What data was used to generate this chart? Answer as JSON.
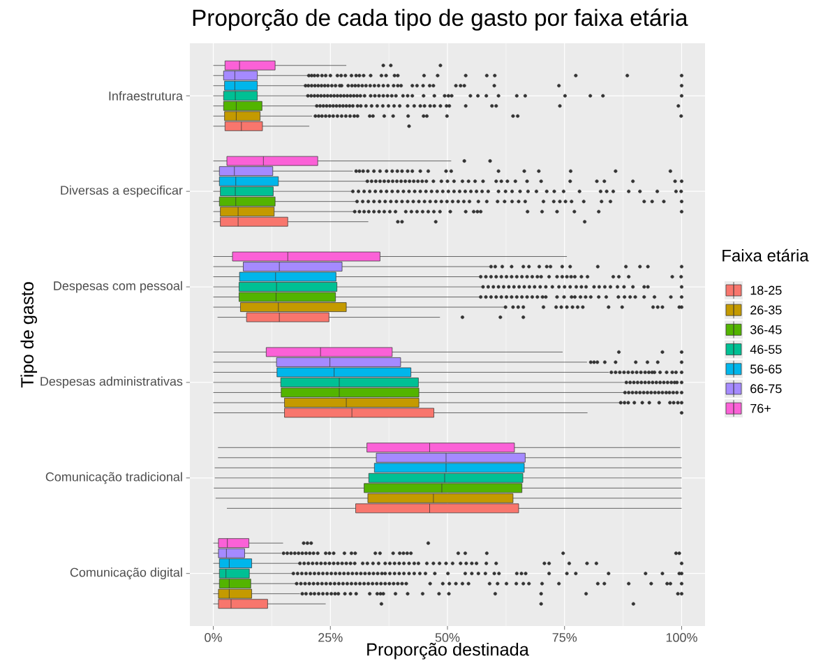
{
  "chart_data": {
    "type": "box",
    "title": "Proporção de cada tipo de gasto por faixa etária",
    "xlabel": "Proporção destinada",
    "ylabel": "Tipo de gasto",
    "legend_title": "Faixa etária",
    "orientation": "horizontal",
    "grid": true,
    "legend": "right",
    "xlim": [
      -5,
      105
    ],
    "xticks": [
      {
        "value": 0,
        "label": "0%"
      },
      {
        "value": 25,
        "label": "25%"
      },
      {
        "value": 50,
        "label": "50%"
      },
      {
        "value": 75,
        "label": "75%"
      },
      {
        "value": 100,
        "label": "100%"
      }
    ],
    "categories": [
      "Infraestrutura",
      "Diversas a especificar",
      "Despesas com pessoal",
      "Despesas administrativas",
      "Comunicação tradicional",
      "Comunicação digital"
    ],
    "series": [
      {
        "name": "18-25",
        "color": "#F8766D",
        "boxes": [
          {
            "low": 0,
            "q1": 2.5,
            "median": 6,
            "q3": 10.5,
            "high": 20.5,
            "outliers": [
              41.8
            ]
          },
          {
            "low": 0,
            "q1": 1.5,
            "median": 5.3,
            "q3": 15.9,
            "high": 33.1,
            "outliers": [
              39.4,
              40.3,
              47.5,
              79.3
            ]
          },
          {
            "low": 0.9,
            "q1": 7.1,
            "median": 14.1,
            "q3": 24.7,
            "high": 48.4,
            "outliers": [
              53.2,
              61.3,
              66.2
            ]
          },
          {
            "low": 0.1,
            "q1": 15.2,
            "median": 29.6,
            "q3": 47.1,
            "high": 79.9,
            "outliers": [
              100
            ]
          },
          {
            "low": 2.9,
            "q1": 30.4,
            "median": 46.2,
            "q3": 65.2,
            "high": 100
          },
          {
            "low": 0,
            "q1": 1.1,
            "median": 3.8,
            "q3": 11.6,
            "high": 24,
            "outliers": [
              35.9,
              70,
              89.7
            ]
          }
        ]
      },
      {
        "name": "26-35",
        "color": "#C49A00",
        "boxes": [
          {
            "low": 0,
            "q1": 2.4,
            "median": 4.9,
            "q3": 10,
            "high": 21.1,
            "outliers": [
              21.8,
              22.5,
              23.2,
              24,
              24.8,
              25.6,
              26.5,
              27.4,
              28.3,
              29.2,
              30.1,
              30.8,
              33.4,
              34.1,
              36.5,
              38.4,
              41.6,
              44.9,
              45.6,
              49.9,
              64,
              65,
              99.9
            ]
          },
          {
            "low": 0,
            "q1": 1.5,
            "median": 5.3,
            "q3": 13,
            "high": 30.2,
            "outliers": [
              30.2,
              31.2,
              32.2,
              33.2,
              34.3,
              35.4,
              36.5,
              37.7,
              38.9,
              41.1,
              42.3,
              43.5,
              44.7,
              45.9,
              47.1,
              48.4,
              50.6,
              53.9,
              55.6,
              56.4,
              57.1,
              67.1,
              70.2,
              73.4,
              77.1,
              82.3,
              100
            ]
          },
          {
            "low": 0,
            "q1": 5.8,
            "median": 13.9,
            "q3": 28.4,
            "high": 62.4,
            "outliers": [
              62.4,
              64,
              65.1,
              66.2,
              70.5,
              73.2,
              74.3,
              75.5,
              76.7,
              77.8,
              78.9,
              84.4,
              87.3,
              93.9,
              94.9,
              95.9,
              99.5,
              100
            ]
          },
          {
            "low": 0,
            "q1": 15.2,
            "median": 28.4,
            "q3": 43.9,
            "high": 86.8,
            "outliers": [
              87,
              87.8,
              88.6,
              89.9,
              91.6,
              93.1,
              95.2,
              97.5,
              98.3,
              99.2,
              100
            ]
          },
          {
            "low": 0.5,
            "q1": 33,
            "median": 47,
            "q3": 64,
            "high": 100
          },
          {
            "low": 0,
            "q1": 1.1,
            "median": 3.4,
            "q3": 8.2,
            "high": 18.5,
            "outliers": [
              19,
              19.8,
              20.8,
              21.6,
              22.5,
              23.4,
              24.3,
              25.2,
              26,
              26.7,
              28.1,
              29.3,
              30.5,
              33.4,
              35,
              35.7,
              36.3,
              38.9,
              41.5,
              44.7,
              48.2,
              50.3,
              60.2,
              70,
              79.6,
              99.2,
              100
            ]
          }
        ]
      },
      {
        "name": "36-45",
        "color": "#53B400",
        "boxes": [
          {
            "low": 0,
            "q1": 2.2,
            "median": 4.9,
            "q3": 10.4,
            "high": 22.1,
            "outliers": [
              22.1,
              22.8,
              23.5,
              24.2,
              24.9,
              25.6,
              26.3,
              27,
              27.7,
              28.4,
              29.1,
              29.8,
              30.8,
              31.5,
              32.6,
              33.8,
              35,
              36.2,
              37.4,
              38.6,
              39.8,
              41.5,
              42.9,
              44.2,
              45.1,
              46.3,
              47.2,
              48.5,
              49.8,
              50.4,
              53.9,
              59.5,
              60.4,
              74,
              99.3
            ]
          },
          {
            "low": 0,
            "q1": 1.3,
            "median": 4.8,
            "q3": 13.2,
            "high": 30.7,
            "outliers": [
              30.7,
              31.9,
              33.1,
              34.3,
              35.5,
              36.7,
              37.9,
              39.1,
              40.3,
              41.5,
              42.7,
              43.9,
              45.1,
              46.3,
              47.5,
              48.7,
              49.9,
              51.1,
              52.3,
              53.5,
              54.7,
              56.6,
              58.4,
              60.7,
              62.2,
              63.8,
              65.2,
              66.6,
              70.5,
              72.7,
              74,
              75.2,
              76.5,
              79.1,
              82.9,
              84.8,
              92,
              93.7,
              96.2,
              100
            ]
          },
          {
            "low": 0,
            "q1": 5.5,
            "median": 13.4,
            "q3": 26.1,
            "high": 57.1,
            "outliers": [
              57.1,
              58.2,
              59.3,
              60.4,
              61.5,
              62.6,
              63.7,
              64.8,
              65.9,
              67,
              68.1,
              69.2,
              70.3,
              71,
              73.4,
              74.9,
              76.5,
              77.2,
              78.4,
              79.5,
              80.6,
              82.3,
              83.9,
              86.5,
              87.8,
              89,
              90.1,
              92,
              94.2,
              97.7,
              100
            ]
          },
          {
            "low": 0,
            "q1": 14.5,
            "median": 26.9,
            "q3": 43.9,
            "high": 87.7,
            "outliers": [
              87.9,
              88.7,
              89.5,
              90.3,
              91.1,
              91.9,
              92.7,
              93.5,
              94.3,
              95.1,
              95.9,
              96.7,
              97.4,
              98.2,
              99,
              100
            ]
          },
          {
            "low": 0.1,
            "q1": 32.2,
            "median": 48.8,
            "q3": 65.9,
            "high": 100
          },
          {
            "low": 0,
            "q1": 1.3,
            "median": 3.4,
            "q3": 8,
            "high": 17.8,
            "outliers": [
              17.8,
              18.7,
              19.6,
              20.5,
              21.4,
              22.3,
              23.2,
              24.1,
              25,
              25.9,
              26.8,
              27.7,
              28.6,
              29.5,
              30.4,
              31.3,
              32.2,
              33.1,
              34,
              34.9,
              35.8,
              36.7,
              37.6,
              38.5,
              39.4,
              40.3,
              41.2,
              46.3,
              49,
              50.4,
              51.8,
              53.2,
              54.5,
              59,
              60.7,
              62.6,
              64.7,
              66.2,
              67.4,
              70.2,
              73.8,
              82.1,
              83.5,
              88.7,
              93.5,
              96.9,
              97.6,
              100
            ]
          }
        ]
      },
      {
        "name": "46-55",
        "color": "#00C094",
        "boxes": [
          {
            "low": 0,
            "q1": 2.2,
            "median": 4.7,
            "q3": 9.4,
            "high": 20.2,
            "outliers": [
              20.2,
              20.9,
              21.6,
              22.3,
              23,
              23.7,
              24.4,
              25.1,
              25.8,
              26.5,
              27.2,
              27.9,
              28.6,
              29.3,
              30,
              30.7,
              31.4,
              32.3,
              33.6,
              34.5,
              35.4,
              36.3,
              37.2,
              38.1,
              39,
              40.5,
              41.5,
              42.5,
              44.9,
              47.2,
              49.4,
              50.2,
              50.9,
              54.9,
              56.5,
              58.3,
              60.9,
              64.8,
              66.6,
              75.1,
              80.5,
              83.2,
              100
            ]
          },
          {
            "low": 0,
            "q1": 1.5,
            "median": 4.7,
            "q3": 12.8,
            "high": 29.8,
            "outliers": [
              29.8,
              31,
              32.2,
              33.4,
              34.6,
              35.8,
              37,
              38.2,
              39.4,
              40.6,
              41.8,
              43,
              44.2,
              45.4,
              46.6,
              47.8,
              49,
              50.2,
              51.4,
              52.6,
              53.8,
              55,
              56.2,
              57.4,
              58.7,
              60.9,
              62.4,
              63.8,
              65.5,
              67.2,
              69,
              71.2,
              72.8,
              74.8,
              78.2,
              82.7,
              84,
              85.4,
              88.7,
              91.1,
              94.8,
              98.8,
              99.9
            ]
          },
          {
            "low": 0,
            "q1": 5.5,
            "median": 13.5,
            "q3": 26.4,
            "high": 57.6,
            "outliers": [
              57.6,
              58.7,
              59.8,
              60.9,
              62,
              63.1,
              64.2,
              65.3,
              66.4,
              67.5,
              68.6,
              69.8,
              71,
              72.4,
              73.8,
              75,
              76.2,
              77.5,
              78.6,
              79.6,
              81.3,
              82.4,
              83.6,
              84.8,
              86.3,
              87.7,
              89.6,
              92,
              92.8,
              100
            ]
          },
          {
            "low": 0,
            "q1": 14.4,
            "median": 26.9,
            "q3": 43.8,
            "high": 87.8,
            "outliers": [
              88.2,
              89,
              89.8,
              90.6,
              91.4,
              92.2,
              93,
              93.8,
              94.6,
              95.4,
              96.2,
              97,
              97.8,
              98.5,
              99,
              100
            ]
          },
          {
            "low": 0.3,
            "q1": 33.2,
            "median": 49.4,
            "q3": 66.1,
            "high": 100
          },
          {
            "low": 0,
            "q1": 1.3,
            "median": 2.7,
            "q3": 7.7,
            "high": 17.1,
            "outliers": [
              17.1,
              18,
              18.9,
              19.8,
              20.7,
              21.6,
              22.5,
              23.4,
              24.3,
              25.2,
              26.1,
              27,
              27.9,
              28.8,
              29.7,
              30.6,
              31.5,
              32.4,
              33.3,
              34.2,
              35.1,
              36,
              36.7,
              37.7,
              38.7,
              39.7,
              40.7,
              41.8,
              42.9,
              44.1,
              45.3,
              47.3,
              50.1,
              53.8,
              55.2,
              56.6,
              58.1,
              60,
              61,
              64.8,
              65.8,
              66.7,
              71.7,
              75.5,
              77.4,
              84.4,
              92.3,
              95.9,
              99.5,
              100
            ]
          }
        ]
      },
      {
        "name": "56-65",
        "color": "#00B6EB",
        "boxes": [
          {
            "low": 0,
            "q1": 2.4,
            "median": 4.6,
            "q3": 9.4,
            "high": 19.7,
            "outliers": [
              19.7,
              20.3,
              21,
              21.7,
              22.4,
              23.1,
              23.8,
              24.5,
              25.3,
              26.1,
              27,
              27.4,
              28.8,
              29.6,
              30.3,
              31,
              31.8,
              32.6,
              33.5,
              34.4,
              35.3,
              36.3,
              37.3,
              38.5,
              39.4,
              40.1,
              42.5,
              43.5,
              44.8,
              46.2,
              47,
              51.8,
              52.8,
              53.6,
              60,
              73.8,
              100
            ]
          },
          {
            "low": 0,
            "q1": 1.3,
            "median": 4.8,
            "q3": 13.9,
            "high": 32.8,
            "outliers": [
              32.9,
              33.8,
              34.7,
              35.6,
              36.5,
              37.4,
              38.3,
              39.2,
              40.1,
              41,
              41.9,
              42.8,
              43.7,
              44.6,
              45.5,
              47,
              48.7,
              50,
              51.4,
              53.2,
              54.5,
              55.9,
              57.6,
              60.4,
              61.5,
              62.8,
              64.5,
              67,
              70,
              76.2,
              81.9,
              83.5,
              89.6,
              98.6,
              100
            ]
          },
          {
            "low": 0,
            "q1": 5.6,
            "median": 13.3,
            "q3": 26.2,
            "high": 57.1,
            "outliers": [
              57.1,
              58.2,
              59.3,
              60.4,
              61.5,
              62.6,
              63.7,
              64.8,
              65.9,
              67,
              68.1,
              69.2,
              70,
              71.7,
              73.4,
              74.5,
              75.5,
              76.4,
              77.2,
              78.6,
              79.9,
              85.4,
              86.6,
              88.7,
              98,
              99.9
            ]
          },
          {
            "low": 0,
            "q1": 13.6,
            "median": 25.8,
            "q3": 42.2,
            "high": 84.5,
            "outliers": [
              85,
              85.9,
              86.8,
              87.7,
              88.6,
              89.5,
              90.4,
              91.3,
              92.2,
              93,
              93.7,
              94.2,
              95.4,
              96.8,
              98,
              98.8,
              100
            ]
          },
          {
            "low": 0.3,
            "q1": 34.4,
            "median": 49.7,
            "q3": 66.4,
            "high": 100
          },
          {
            "low": 0,
            "q1": 1.3,
            "median": 3.4,
            "q3": 8.2,
            "high": 18.5,
            "outliers": [
              18.5,
              19.4,
              20.3,
              21.2,
              22.1,
              23,
              23.9,
              24.8,
              25.7,
              26.6,
              27.5,
              28.4,
              29.3,
              30.2,
              31.9,
              32.9,
              34.1,
              35.3,
              36.7,
              37.7,
              38.7,
              39.7,
              40.7,
              41.8,
              42.9,
              43.8,
              45.6,
              47,
              48.3,
              49.7,
              51.1,
              52.8,
              54,
              55.2,
              56.2,
              58.3,
              60.4,
              70.7,
              71.7,
              76,
              79.8,
              81.8,
              100
            ]
          }
        ]
      },
      {
        "name": "66-75",
        "color": "#A58AFF",
        "boxes": [
          {
            "low": 0,
            "q1": 2.2,
            "median": 4.6,
            "q3": 9.4,
            "high": 20.2,
            "outliers": [
              20.4,
              21,
              21.6,
              22.3,
              23.2,
              24,
              25,
              26.5,
              27.3,
              28.2,
              29.5,
              30.5,
              31.2,
              32.1,
              33.6,
              35.9,
              36.9,
              38.7,
              39.4,
              45,
              47.9,
              53.9,
              58.4,
              60.1,
              77.4,
              88.4,
              100
            ]
          },
          {
            "low": 0,
            "q1": 1.3,
            "median": 4.5,
            "q3": 12.7,
            "high": 29.8,
            "outliers": [
              30.5,
              31.2,
              32,
              33,
              34.3,
              35.6,
              37,
              38.2,
              39.3,
              40.3,
              41.5,
              42.5,
              44.2,
              45.9,
              49.7,
              50.8,
              60.9,
              66.4,
              69.5,
              76.3,
              85.9,
              97.6
            ]
          },
          {
            "low": 0,
            "q1": 6.4,
            "median": 14.1,
            "q3": 27.5,
            "high": 59,
            "outliers": [
              59.3,
              60.2,
              61.7,
              63.7,
              66.2,
              67.4,
              69.6,
              71.2,
              72,
              74.5,
              76.2,
              82.1,
              88.1,
              91.1,
              92.8,
              100
            ]
          },
          {
            "low": 0,
            "q1": 13.5,
            "median": 24.9,
            "q3": 40,
            "high": 79.8,
            "outliers": [
              80.6,
              81.3,
              82,
              83.6,
              85.9,
              90.2,
              92.7,
              94.9,
              100
            ]
          },
          {
            "low": 1,
            "q1": 34.8,
            "median": 49.7,
            "q3": 66.6,
            "high": 100
          },
          {
            "low": 0,
            "q1": 1.1,
            "median": 2.8,
            "q3": 6.7,
            "high": 14.5,
            "outliers": [
              15,
              15.8,
              16.6,
              17.4,
              18.2,
              19,
              19.8,
              20.6,
              21.4,
              22.3,
              24,
              24.8,
              25.7,
              28,
              29.5,
              30.3,
              34.6,
              35.6,
              38.4,
              39.8,
              40.6,
              41.4,
              42.2,
              52.3,
              53.8,
              58.4,
              74.7,
              98.8,
              99.5
            ]
          }
        ]
      },
      {
        "name": "76+",
        "color": "#FB61D7",
        "boxes": [
          {
            "low": 0,
            "q1": 2.5,
            "median": 5.6,
            "q3": 13.2,
            "high": 28.4,
            "outliers": [
              36.3,
              37.9,
              48.5
            ]
          },
          {
            "low": 0,
            "q1": 2.9,
            "median": 10.7,
            "q3": 22.3,
            "high": 50.8,
            "outliers": [
              53.6,
              59.1
            ]
          },
          {
            "low": 0,
            "q1": 4.1,
            "median": 15.9,
            "q3": 35.6,
            "high": 75.5
          },
          {
            "low": 0,
            "q1": 11.3,
            "median": 22.9,
            "q3": 38.2,
            "high": 74.6,
            "outliers": [
              86.6,
              95.9,
              100
            ]
          },
          {
            "low": 1,
            "q1": 32.8,
            "median": 46.2,
            "q3": 64.3,
            "high": 99.7
          },
          {
            "low": 0,
            "q1": 1.1,
            "median": 3,
            "q3": 7.6,
            "high": 14.9,
            "outliers": [
              19.3,
              20.1,
              20.9,
              45.9
            ]
          }
        ]
      }
    ]
  }
}
